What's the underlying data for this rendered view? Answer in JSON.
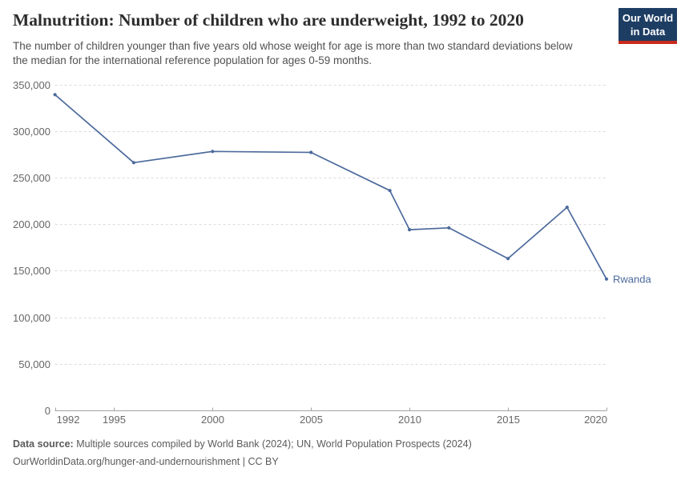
{
  "header": {
    "title": "Malnutrition: Number of children who are underweight, 1992 to 2020",
    "subtitle": "The number of children younger than five years old whose weight for age is more than two standard deviations below the median for the international reference population for ages 0-59 months."
  },
  "logo": {
    "line1": "Our World",
    "line2": "in Data",
    "bg_color": "#1d3d63",
    "accent_color": "#cb2a1d"
  },
  "chart_data": {
    "type": "line",
    "title": "Malnutrition: Number of children who are underweight, 1992 to 2020",
    "xlabel": "",
    "ylabel": "",
    "xlim": [
      1992,
      2020
    ],
    "ylim": [
      0,
      350000
    ],
    "grid": "horizontal-dashed",
    "legend_position": "end-of-line-label",
    "x_ticks": [
      1992,
      1995,
      2000,
      2005,
      2010,
      2015,
      2020
    ],
    "x_tick_labels": [
      "1992",
      "1995",
      "2000",
      "2005",
      "2010",
      "2015",
      "2020"
    ],
    "y_ticks": [
      0,
      50000,
      100000,
      150000,
      200000,
      250000,
      300000,
      350000
    ],
    "y_tick_labels": [
      "0",
      "50,000",
      "100,000",
      "150,000",
      "200,000",
      "250,000",
      "300,000",
      "350,000"
    ],
    "series": [
      {
        "name": "Rwanda",
        "color": "#4C6A9C",
        "x": [
          1992,
          1996,
          2000,
          2005,
          2009,
          2010,
          2012,
          2015,
          2018,
          2020
        ],
        "values": [
          339000,
          266000,
          278000,
          277000,
          236000,
          194000,
          196000,
          163000,
          218000,
          141000
        ]
      }
    ],
    "colors": {
      "grid": "#dcdcdc",
      "axis": "#a3a3a3",
      "tick_label": "#666666"
    }
  },
  "footer": {
    "source_label": "Data source:",
    "source_text": "Multiple sources compiled by World Bank (2024); UN, World Population Prospects (2024)",
    "url_text": "OurWorldinData.org/hunger-and-undernourishment | CC BY"
  }
}
